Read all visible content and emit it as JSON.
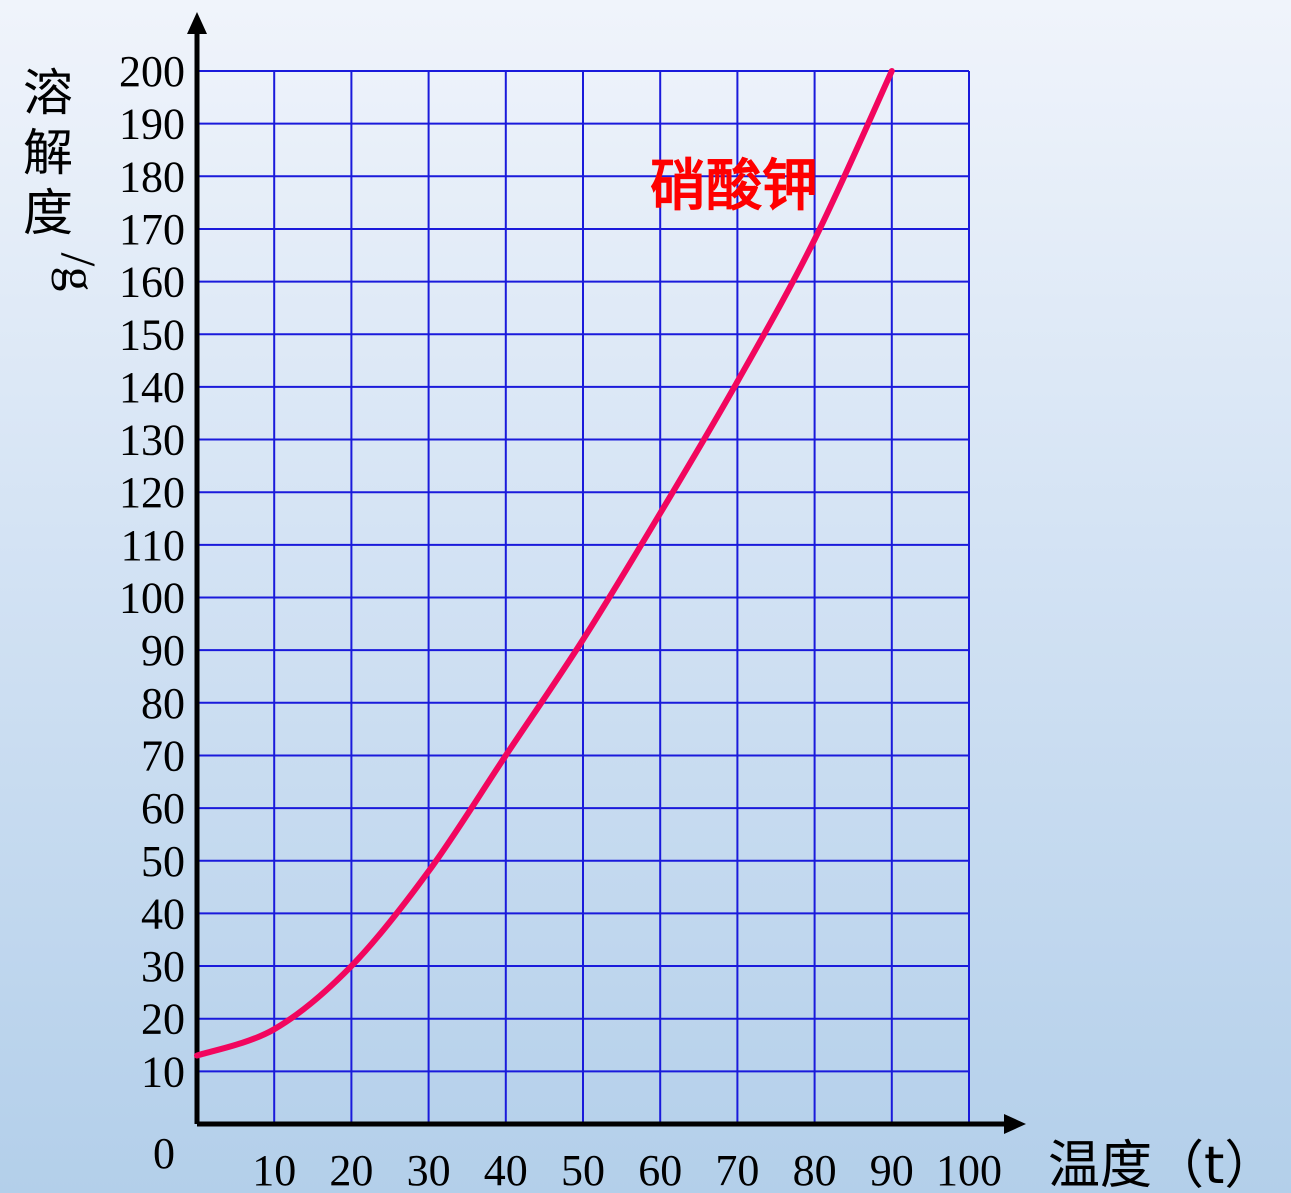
{
  "chart_data": {
    "type": "line",
    "xlabel": "温度（t）",
    "ylabel_chars": [
      "溶",
      "解",
      "度",
      "g"
    ],
    "xlim": [
      0,
      100
    ],
    "ylim": [
      0,
      200
    ],
    "x_ticks": [
      10,
      20,
      30,
      40,
      50,
      60,
      70,
      80,
      90,
      100
    ],
    "y_ticks": [
      0,
      10,
      20,
      30,
      40,
      50,
      60,
      70,
      80,
      90,
      100,
      110,
      120,
      130,
      140,
      150,
      160,
      170,
      180,
      190,
      200
    ],
    "grid": true,
    "series": [
      {
        "name": "硝酸钾",
        "x": [
          0,
          10,
          20,
          30,
          40,
          50,
          60,
          70,
          80,
          90
        ],
        "y": [
          13,
          18,
          30,
          48,
          70,
          92,
          116,
          141,
          168,
          200
        ]
      }
    ],
    "colors": {
      "series": "#f2065e",
      "series_label": "#ff0000",
      "grid": "#1a1adb",
      "axis": "#000000"
    }
  }
}
